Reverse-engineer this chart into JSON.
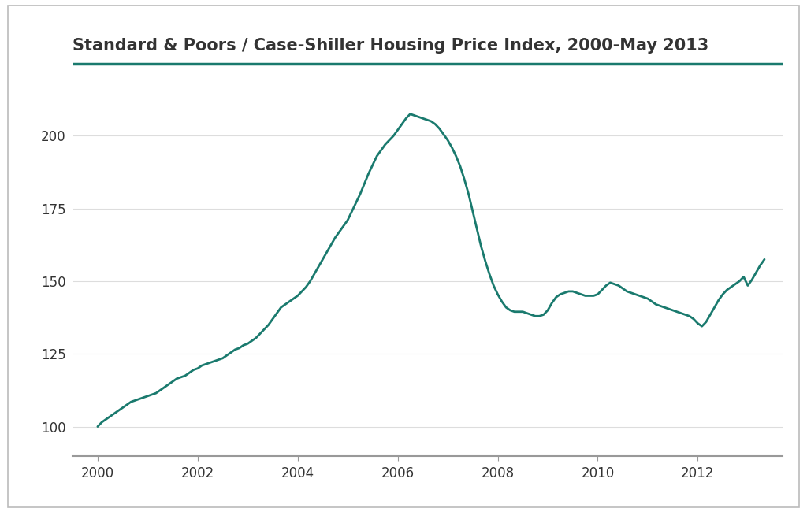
{
  "title": "Standard & Poors / Case-Shiller Housing Price Index, 2000-May 2013",
  "title_color": "#333333",
  "line_color": "#1a7a6e",
  "background_color": "#ffffff",
  "border_color": "#bbbbbb",
  "title_line_color": "#1a7a6e",
  "grid_color": "#dddddd",
  "axis_color": "#999999",
  "ylim": [
    90,
    215
  ],
  "yticks": [
    100,
    125,
    150,
    175,
    200
  ],
  "xticks": [
    2000,
    2002,
    2004,
    2006,
    2008,
    2010,
    2012
  ],
  "xlim": [
    1999.5,
    2013.7
  ],
  "x_data": [
    2000.0,
    2000.083,
    2000.167,
    2000.25,
    2000.333,
    2000.417,
    2000.5,
    2000.583,
    2000.667,
    2000.75,
    2000.833,
    2000.917,
    2001.0,
    2001.083,
    2001.167,
    2001.25,
    2001.333,
    2001.417,
    2001.5,
    2001.583,
    2001.667,
    2001.75,
    2001.833,
    2001.917,
    2002.0,
    2002.083,
    2002.167,
    2002.25,
    2002.333,
    2002.417,
    2002.5,
    2002.583,
    2002.667,
    2002.75,
    2002.833,
    2002.917,
    2003.0,
    2003.083,
    2003.167,
    2003.25,
    2003.333,
    2003.417,
    2003.5,
    2003.583,
    2003.667,
    2003.75,
    2003.833,
    2003.917,
    2004.0,
    2004.083,
    2004.167,
    2004.25,
    2004.333,
    2004.417,
    2004.5,
    2004.583,
    2004.667,
    2004.75,
    2004.833,
    2004.917,
    2005.0,
    2005.083,
    2005.167,
    2005.25,
    2005.333,
    2005.417,
    2005.5,
    2005.583,
    2005.667,
    2005.75,
    2005.833,
    2005.917,
    2006.0,
    2006.083,
    2006.167,
    2006.25,
    2006.333,
    2006.417,
    2006.5,
    2006.583,
    2006.667,
    2006.75,
    2006.833,
    2006.917,
    2007.0,
    2007.083,
    2007.167,
    2007.25,
    2007.333,
    2007.417,
    2007.5,
    2007.583,
    2007.667,
    2007.75,
    2007.833,
    2007.917,
    2008.0,
    2008.083,
    2008.167,
    2008.25,
    2008.333,
    2008.417,
    2008.5,
    2008.583,
    2008.667,
    2008.75,
    2008.833,
    2008.917,
    2009.0,
    2009.083,
    2009.167,
    2009.25,
    2009.333,
    2009.417,
    2009.5,
    2009.583,
    2009.667,
    2009.75,
    2009.833,
    2009.917,
    2010.0,
    2010.083,
    2010.167,
    2010.25,
    2010.333,
    2010.417,
    2010.5,
    2010.583,
    2010.667,
    2010.75,
    2010.833,
    2010.917,
    2011.0,
    2011.083,
    2011.167,
    2011.25,
    2011.333,
    2011.417,
    2011.5,
    2011.583,
    2011.667,
    2011.75,
    2011.833,
    2011.917,
    2012.0,
    2012.083,
    2012.167,
    2012.25,
    2012.333,
    2012.417,
    2012.5,
    2012.583,
    2012.667,
    2012.75,
    2012.833,
    2012.917,
    2013.0,
    2013.083,
    2013.167,
    2013.25,
    2013.333
  ],
  "y_data": [
    100.0,
    101.5,
    102.5,
    103.5,
    104.5,
    105.5,
    106.5,
    107.5,
    108.5,
    109.0,
    109.5,
    110.0,
    110.5,
    111.0,
    111.5,
    112.5,
    113.5,
    114.5,
    115.5,
    116.5,
    117.0,
    117.5,
    118.5,
    119.5,
    120.0,
    121.0,
    121.5,
    122.0,
    122.5,
    123.0,
    123.5,
    124.5,
    125.5,
    126.5,
    127.0,
    128.0,
    128.5,
    129.5,
    130.5,
    132.0,
    133.5,
    135.0,
    137.0,
    139.0,
    141.0,
    142.0,
    143.0,
    144.0,
    145.0,
    146.5,
    148.0,
    150.0,
    152.5,
    155.0,
    157.5,
    160.0,
    162.5,
    165.0,
    167.0,
    169.0,
    171.0,
    174.0,
    177.0,
    180.0,
    183.5,
    187.0,
    190.0,
    193.0,
    195.0,
    197.0,
    198.5,
    200.0,
    202.0,
    204.0,
    206.0,
    207.5,
    207.0,
    206.5,
    206.0,
    205.5,
    205.0,
    204.0,
    202.5,
    200.5,
    198.5,
    196.0,
    193.0,
    189.5,
    185.0,
    180.0,
    174.0,
    168.0,
    162.0,
    157.0,
    152.5,
    148.5,
    145.5,
    143.0,
    141.0,
    140.0,
    139.5,
    139.5,
    139.5,
    139.0,
    138.5,
    138.0,
    138.0,
    138.5,
    140.0,
    142.5,
    144.5,
    145.5,
    146.0,
    146.5,
    146.5,
    146.0,
    145.5,
    145.0,
    145.0,
    145.0,
    145.5,
    147.0,
    148.5,
    149.5,
    149.0,
    148.5,
    147.5,
    146.5,
    146.0,
    145.5,
    145.0,
    144.5,
    144.0,
    143.0,
    142.0,
    141.5,
    141.0,
    140.5,
    140.0,
    139.5,
    139.0,
    138.5,
    138.0,
    137.0,
    135.5,
    134.5,
    136.0,
    138.5,
    141.0,
    143.5,
    145.5,
    147.0,
    148.0,
    149.0,
    150.0,
    151.5,
    148.5,
    150.5,
    153.0,
    155.5,
    157.5
  ]
}
